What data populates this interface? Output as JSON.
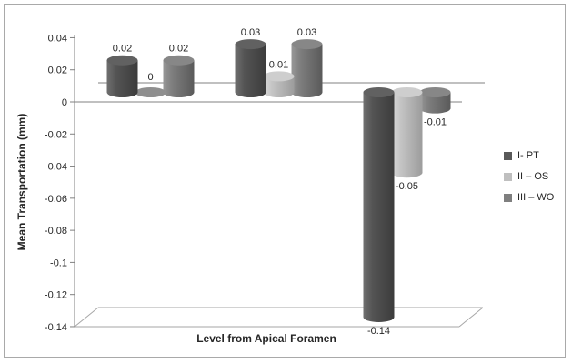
{
  "window": {
    "background": "#ffffff",
    "border_color": "#a9a9a9"
  },
  "chart_data": {
    "type": "bar",
    "style": "3d-cylinder",
    "title": "",
    "xlabel": "Level from Apical Foramen",
    "ylabel": "Mean Transportation (mm)",
    "ylim": [
      -0.14,
      0.04
    ],
    "ytick_step": 0.02,
    "ytick_labels": [
      "0.04",
      "0.02",
      "0",
      "-0.02",
      "-0.04",
      "-0.06",
      "-0.08",
      "-0.1",
      "-0.12",
      "-0.14"
    ],
    "categories": [
      "",
      "",
      ""
    ],
    "series": [
      {
        "name": "I- PT",
        "values": [
          0.02,
          0.03,
          -0.14
        ],
        "labels": [
          "0.02",
          "0.03",
          "-0.14"
        ],
        "color": "#595959",
        "gradient": [
          "#707070",
          "#545454",
          "#3c3c3c"
        ],
        "top_color": "#616161"
      },
      {
        "name": "II – OS",
        "values": [
          0,
          0.01,
          -0.05
        ],
        "labels": [
          "0",
          "0.01",
          "-0.05"
        ],
        "color": "#bfbfbf",
        "gradient": [
          "#dadada",
          "#c4c4c4",
          "#9c9c9c"
        ],
        "top_color": "#cecece"
      },
      {
        "name": "III – WO",
        "values": [
          0.02,
          0.03,
          -0.01
        ],
        "labels": [
          "0.02",
          "0.03",
          "-0.01"
        ],
        "color": "#7f7f7f",
        "gradient": [
          "#979797",
          "#7d7d7d",
          "#5a5a5a"
        ],
        "top_color": "#878787"
      }
    ],
    "zero_marker_color": "#8f8f8f",
    "grid": false,
    "data_labels_visible": true,
    "legend_position": "right",
    "axis_color": "#808080",
    "floor_color": "#a6a6a6",
    "text_color": "#262626"
  }
}
